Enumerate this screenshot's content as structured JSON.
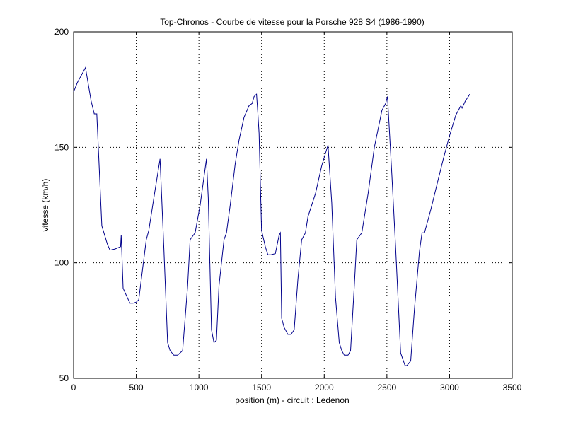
{
  "chart_data": {
    "type": "line",
    "title": "Top-Chronos - Courbe de vitesse pour la Porsche 928 S4 (1986-1990)",
    "xlabel": "position (m) - circuit : Ledenon",
    "ylabel": "vitesse (km/h)",
    "xlim": [
      0,
      3500
    ],
    "ylim": [
      50,
      200
    ],
    "xticks": [
      0,
      500,
      1000,
      1500,
      2000,
      2500,
      3000,
      3500
    ],
    "yticks": [
      50,
      100,
      150,
      200
    ],
    "grid": true,
    "legend": "none",
    "line_color": "#00008b",
    "series": [
      {
        "x": [
          0,
          30,
          60,
          95,
          140,
          165,
          185,
          225,
          270,
          290,
          330,
          375,
          380,
          395,
          420,
          450,
          475,
          500,
          520,
          580,
          600,
          640,
          690,
          720,
          750,
          770,
          800,
          830,
          870,
          910,
          930,
          970,
          1010,
          1060,
          1075,
          1100,
          1120,
          1140,
          1160,
          1200,
          1220,
          1250,
          1290,
          1320,
          1360,
          1400,
          1425,
          1440,
          1460,
          1470,
          1480,
          1500,
          1530,
          1550,
          1575,
          1610,
          1640,
          1650,
          1660,
          1680,
          1710,
          1735,
          1760,
          1790,
          1820,
          1850,
          1870,
          1930,
          1980,
          2030,
          2060,
          2090,
          2120,
          2140,
          2160,
          2190,
          2210,
          2240,
          2260,
          2300,
          2350,
          2400,
          2430,
          2460,
          2490,
          2505,
          2540,
          2570,
          2610,
          2645,
          2660,
          2690,
          2720,
          2760,
          2780,
          2800,
          2850,
          2900,
          2950,
          3000,
          3050,
          3070,
          3080,
          3090,
          3100,
          3125,
          3150,
          3160
        ],
        "y": [
          174,
          178,
          181,
          184.5,
          170,
          164.5,
          164.5,
          116,
          108,
          105.5,
          106,
          107,
          112,
          89,
          86,
          82.5,
          82.5,
          83,
          84,
          110,
          114,
          128,
          145,
          107,
          65.5,
          62,
          60,
          60,
          62,
          90,
          110,
          113,
          125,
          145,
          128,
          71,
          65.5,
          66.5,
          90,
          110,
          113,
          125,
          143,
          153,
          163,
          168,
          169,
          172,
          173,
          165,
          156,
          114,
          107,
          103.5,
          103.5,
          104,
          112,
          113,
          76,
          72,
          69,
          69,
          71,
          93,
          110,
          113,
          120,
          130,
          142,
          151,
          126,
          85,
          65.5,
          62,
          60,
          60,
          62,
          90,
          110,
          113,
          130,
          150,
          158,
          166,
          169,
          172,
          138,
          106,
          61,
          55.5,
          55.5,
          57.5,
          80,
          105,
          113,
          113,
          123,
          134,
          145,
          155,
          164,
          166,
          167,
          168,
          167,
          170,
          172,
          173
        ]
      }
    ]
  }
}
